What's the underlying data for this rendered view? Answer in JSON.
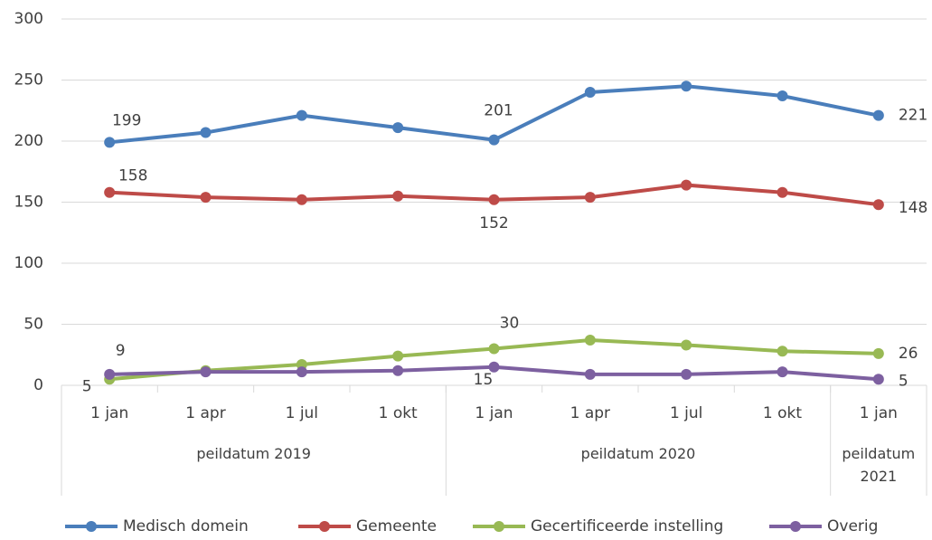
{
  "chart_data": {
    "type": "line",
    "categories": [
      "1 jan",
      "1 apr",
      "1 jul",
      "1 okt",
      "1 jan",
      "1 apr",
      "1 jul",
      "1 okt",
      "1 jan"
    ],
    "groups": [
      {
        "name": "peildatum 2019",
        "count": 4
      },
      {
        "name": "peildatum 2020",
        "count": 4
      },
      {
        "name": "peildatum 2021",
        "count": 1
      }
    ],
    "ylim": [
      0,
      300
    ],
    "yticks": [
      0,
      50,
      100,
      150,
      200,
      250,
      300
    ],
    "grid": true,
    "series": [
      {
        "name": "Medisch domein",
        "color": "#4a7ebb",
        "values": [
          199,
          207,
          221,
          211,
          201,
          240,
          245,
          237,
          221
        ],
        "labeled": [
          0,
          4,
          8
        ]
      },
      {
        "name": "Gemeente",
        "color": "#be4b48",
        "values": [
          158,
          154,
          152,
          155,
          152,
          154,
          164,
          158,
          148
        ],
        "labeled": [
          0,
          4,
          8
        ]
      },
      {
        "name": "Gecertificeerde instelling",
        "color": "#98b954",
        "values": [
          5,
          12,
          17,
          24,
          30,
          37,
          33,
          28,
          26
        ],
        "labeled": [
          0,
          4,
          8
        ]
      },
      {
        "name": "Overig",
        "color": "#7d60a0",
        "values": [
          9,
          11,
          11,
          12,
          15,
          9,
          9,
          11,
          5
        ],
        "labeled": [
          0,
          4,
          8
        ]
      }
    ]
  }
}
